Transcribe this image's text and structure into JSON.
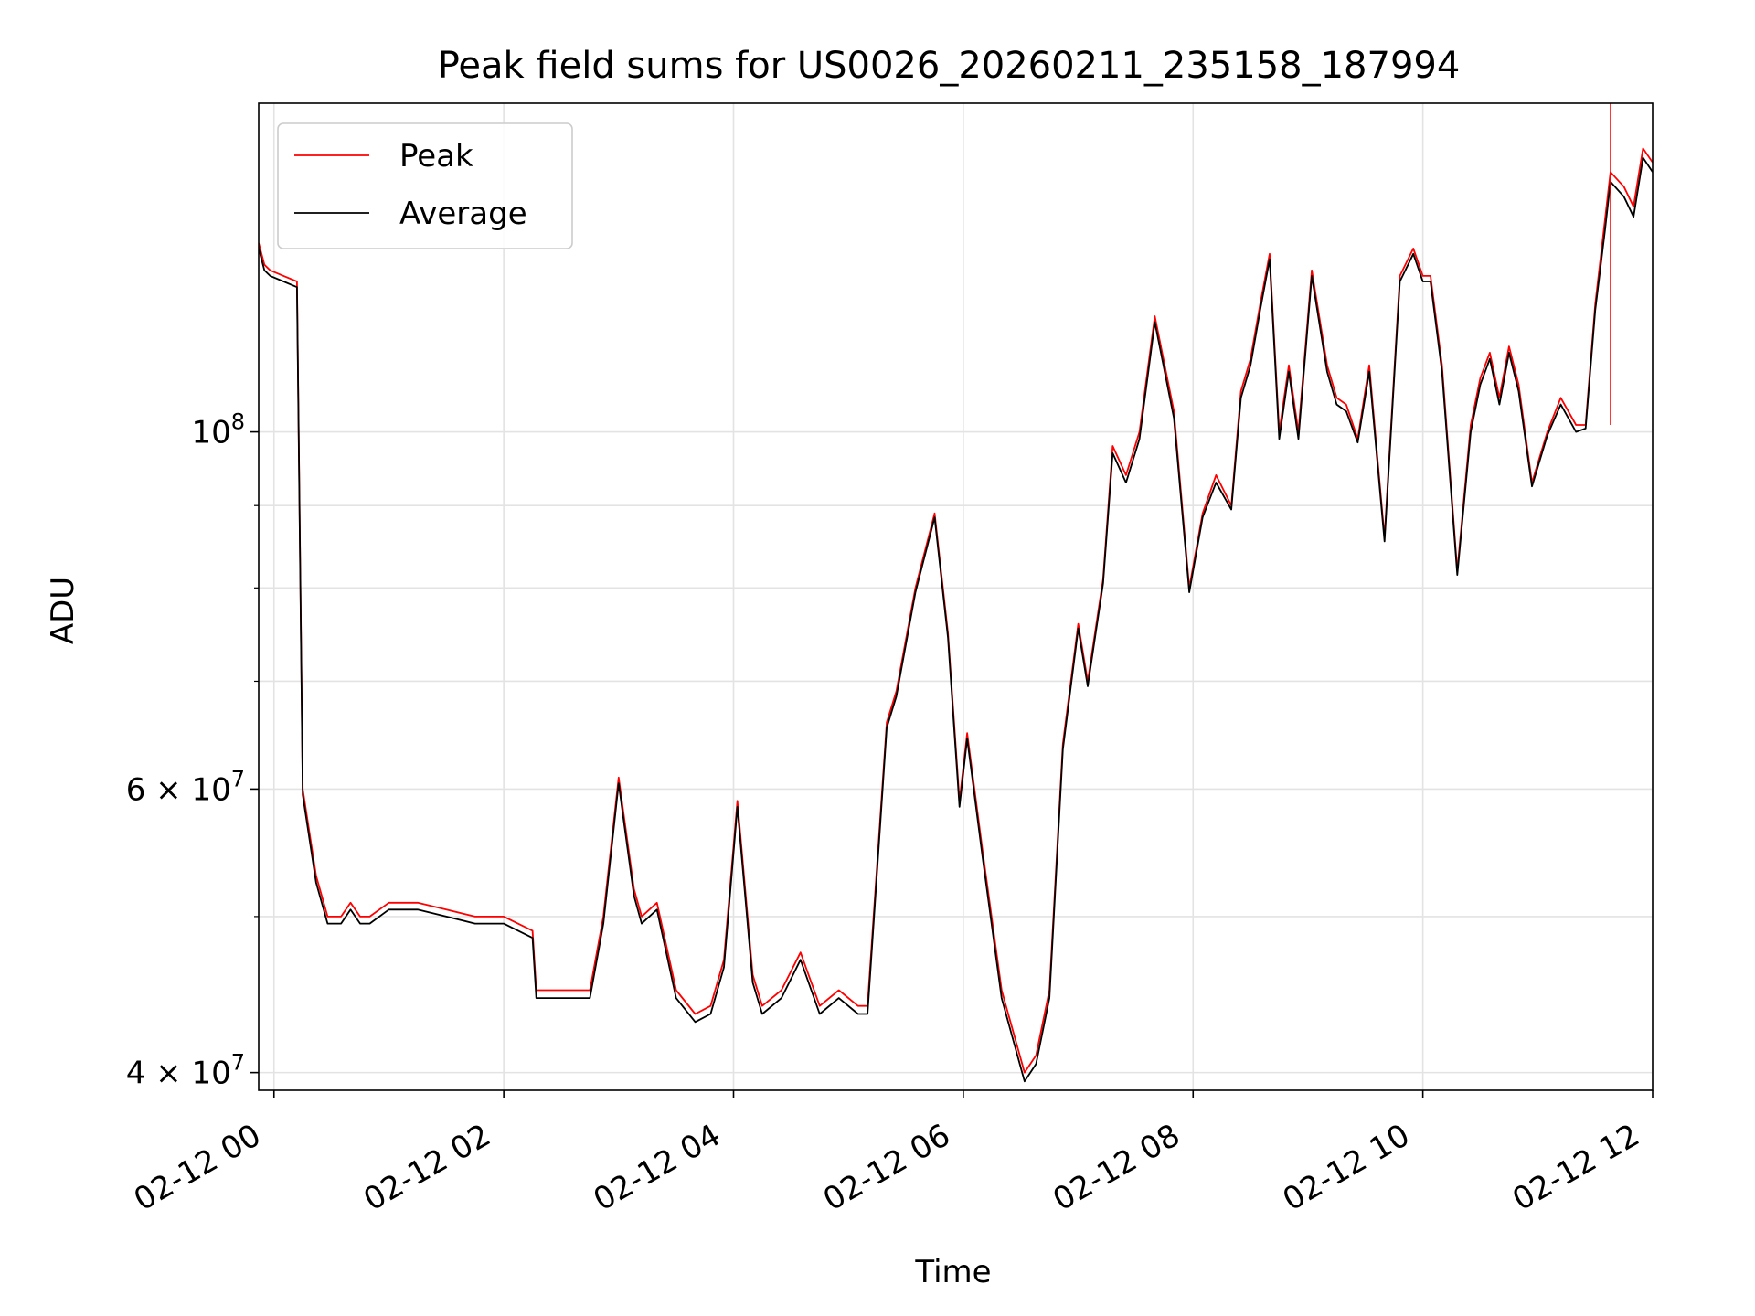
{
  "chart_data": {
    "type": "line",
    "title": "Peak field sums for US0026_20260211_235158_187994",
    "xlabel": "Time",
    "ylabel": "ADU",
    "y_scale": "log",
    "ylim": [
      39000000,
      160000000
    ],
    "xlim": [
      "2026-02-11T23:52",
      "2026-02-12T12:00"
    ],
    "x_ticks": [
      {
        "t": "2026-02-12T00:00",
        "label": "02-12 00"
      },
      {
        "t": "2026-02-12T02:00",
        "label": "02-12 02"
      },
      {
        "t": "2026-02-12T04:00",
        "label": "02-12 04"
      },
      {
        "t": "2026-02-12T06:00",
        "label": "02-12 06"
      },
      {
        "t": "2026-02-12T08:00",
        "label": "02-12 08"
      },
      {
        "t": "2026-02-12T10:00",
        "label": "02-12 10"
      },
      {
        "t": "2026-02-12T12:00",
        "label": "02-12 12"
      }
    ],
    "y_ticks": [
      {
        "value": 40000000,
        "label": "4 × 10⁷",
        "mantissa": "4 × 10",
        "exp": "7"
      },
      {
        "value": 60000000,
        "label": "6 × 10⁷",
        "mantissa": "6 × 10",
        "exp": "7"
      },
      {
        "value": 100000000,
        "label": "10⁸",
        "mantissa": "10",
        "exp": "8"
      }
    ],
    "y_minor_ticks": [
      50000000,
      70000000,
      80000000,
      90000000
    ],
    "grid": true,
    "legend_position": "upper-left",
    "series": [
      {
        "name": "Peak",
        "color": "#ff0000",
        "x": [
          "2026-02-11T23:52",
          "2026-02-11T23:55",
          "2026-02-11T23:58",
          "2026-02-12T00:05",
          "2026-02-12T00:12",
          "2026-02-12T00:15",
          "2026-02-12T00:22",
          "2026-02-12T00:28",
          "2026-02-12T00:35",
          "2026-02-12T00:40",
          "2026-02-12T00:45",
          "2026-02-12T00:50",
          "2026-02-12T01:00",
          "2026-02-12T01:15",
          "2026-02-12T01:30",
          "2026-02-12T01:45",
          "2026-02-12T02:00",
          "2026-02-12T02:15",
          "2026-02-12T02:17",
          "2026-02-12T02:30",
          "2026-02-12T02:45",
          "2026-02-12T02:52",
          "2026-02-12T03:00",
          "2026-02-12T03:08",
          "2026-02-12T03:12",
          "2026-02-12T03:20",
          "2026-02-12T03:30",
          "2026-02-12T03:40",
          "2026-02-12T03:48",
          "2026-02-12T03:55",
          "2026-02-12T04:02",
          "2026-02-12T04:10",
          "2026-02-12T04:15",
          "2026-02-12T04:25",
          "2026-02-12T04:35",
          "2026-02-12T04:45",
          "2026-02-12T04:55",
          "2026-02-12T05:05",
          "2026-02-12T05:10",
          "2026-02-12T05:20",
          "2026-02-12T05:25",
          "2026-02-12T05:35",
          "2026-02-12T05:45",
          "2026-02-12T05:52",
          "2026-02-12T05:58",
          "2026-02-12T06:02",
          "2026-02-12T06:10",
          "2026-02-12T06:20",
          "2026-02-12T06:32",
          "2026-02-12T06:38",
          "2026-02-12T06:45",
          "2026-02-12T06:52",
          "2026-02-12T07:00",
          "2026-02-12T07:05",
          "2026-02-12T07:13",
          "2026-02-12T07:18",
          "2026-02-12T07:25",
          "2026-02-12T07:32",
          "2026-02-12T07:40",
          "2026-02-12T07:50",
          "2026-02-12T07:58",
          "2026-02-12T08:05",
          "2026-02-12T08:12",
          "2026-02-12T08:20",
          "2026-02-12T08:25",
          "2026-02-12T08:30",
          "2026-02-12T08:35",
          "2026-02-12T08:40",
          "2026-02-12T08:45",
          "2026-02-12T08:50",
          "2026-02-12T08:55",
          "2026-02-12T09:02",
          "2026-02-12T09:10",
          "2026-02-12T09:15",
          "2026-02-12T09:20",
          "2026-02-12T09:26",
          "2026-02-12T09:32",
          "2026-02-12T09:40",
          "2026-02-12T09:48",
          "2026-02-12T09:55",
          "2026-02-12T10:00",
          "2026-02-12T10:04",
          "2026-02-12T10:10",
          "2026-02-12T10:18",
          "2026-02-12T10:25",
          "2026-02-12T10:30",
          "2026-02-12T10:35",
          "2026-02-12T10:40",
          "2026-02-12T10:45",
          "2026-02-12T10:50",
          "2026-02-12T10:57",
          "2026-02-12T11:05",
          "2026-02-12T11:12",
          "2026-02-12T11:20",
          "2026-02-12T11:25",
          "2026-02-12T11:30",
          "2026-02-12T11:35",
          "2026-02-12T11:38",
          "2026-02-12T11:45",
          "2026-02-12T11:50",
          "2026-02-12T11:55",
          "2026-02-12T12:00"
        ],
        "y": [
          131000000,
          127000000,
          126000000,
          125000000,
          124000000,
          60000000,
          53000000,
          50000000,
          50000000,
          51000000,
          50000000,
          50000000,
          51000000,
          51000000,
          50500000,
          50000000,
          50000000,
          49000000,
          45000000,
          45000000,
          45000000,
          50000000,
          61000000,
          52000000,
          50000000,
          51000000,
          45000000,
          43500000,
          44000000,
          47000000,
          59000000,
          46000000,
          44000000,
          45000000,
          47500000,
          44000000,
          45000000,
          44000000,
          44000000,
          66000000,
          69000000,
          80000000,
          89000000,
          75000000,
          59000000,
          65000000,
          55000000,
          45000000,
          40000000,
          41000000,
          45000000,
          64000000,
          76000000,
          70000000,
          81000000,
          98000000,
          94000000,
          100000000,
          118000000,
          103000000,
          80000000,
          89000000,
          94000000,
          90000000,
          106000000,
          111000000,
          120000000,
          129000000,
          100000000,
          110000000,
          100000000,
          126000000,
          110000000,
          105000000,
          104000000,
          99000000,
          110000000,
          86000000,
          125000000,
          130000000,
          125000000,
          125000000,
          110000000,
          82000000,
          101000000,
          108000000,
          112000000,
          105000000,
          113000000,
          107000000,
          93000000,
          100000000,
          105000000,
          101000000,
          101000000,
          120000000,
          135000000,
          145000000,
          142000000,
          138000000,
          150000000,
          147000000
        ]
      },
      {
        "name": "Average",
        "color": "#000000",
        "x": [
          "2026-02-11T23:52",
          "2026-02-11T23:55",
          "2026-02-11T23:58",
          "2026-02-12T00:05",
          "2026-02-12T00:12",
          "2026-02-12T00:15",
          "2026-02-12T00:22",
          "2026-02-12T00:28",
          "2026-02-12T00:35",
          "2026-02-12T00:40",
          "2026-02-12T00:45",
          "2026-02-12T00:50",
          "2026-02-12T01:00",
          "2026-02-12T01:15",
          "2026-02-12T01:30",
          "2026-02-12T01:45",
          "2026-02-12T02:00",
          "2026-02-12T02:15",
          "2026-02-12T02:17",
          "2026-02-12T02:30",
          "2026-02-12T02:45",
          "2026-02-12T02:52",
          "2026-02-12T03:00",
          "2026-02-12T03:08",
          "2026-02-12T03:12",
          "2026-02-12T03:20",
          "2026-02-12T03:30",
          "2026-02-12T03:40",
          "2026-02-12T03:48",
          "2026-02-12T03:55",
          "2026-02-12T04:02",
          "2026-02-12T04:10",
          "2026-02-12T04:15",
          "2026-02-12T04:25",
          "2026-02-12T04:35",
          "2026-02-12T04:45",
          "2026-02-12T04:55",
          "2026-02-12T05:05",
          "2026-02-12T05:10",
          "2026-02-12T05:20",
          "2026-02-12T05:25",
          "2026-02-12T05:35",
          "2026-02-12T05:45",
          "2026-02-12T05:52",
          "2026-02-12T05:58",
          "2026-02-12T06:02",
          "2026-02-12T06:10",
          "2026-02-12T06:20",
          "2026-02-12T06:32",
          "2026-02-12T06:38",
          "2026-02-12T06:45",
          "2026-02-12T06:52",
          "2026-02-12T07:00",
          "2026-02-12T07:05",
          "2026-02-12T07:13",
          "2026-02-12T07:18",
          "2026-02-12T07:25",
          "2026-02-12T07:32",
          "2026-02-12T07:40",
          "2026-02-12T07:50",
          "2026-02-12T07:58",
          "2026-02-12T08:05",
          "2026-02-12T08:12",
          "2026-02-12T08:20",
          "2026-02-12T08:25",
          "2026-02-12T08:30",
          "2026-02-12T08:35",
          "2026-02-12T08:40",
          "2026-02-12T08:45",
          "2026-02-12T08:50",
          "2026-02-12T08:55",
          "2026-02-12T09:02",
          "2026-02-12T09:10",
          "2026-02-12T09:15",
          "2026-02-12T09:20",
          "2026-02-12T09:26",
          "2026-02-12T09:32",
          "2026-02-12T09:40",
          "2026-02-12T09:48",
          "2026-02-12T09:55",
          "2026-02-12T10:00",
          "2026-02-12T10:04",
          "2026-02-12T10:10",
          "2026-02-12T10:18",
          "2026-02-12T10:25",
          "2026-02-12T10:30",
          "2026-02-12T10:35",
          "2026-02-12T10:40",
          "2026-02-12T10:45",
          "2026-02-12T10:50",
          "2026-02-12T10:57",
          "2026-02-12T11:05",
          "2026-02-12T11:12",
          "2026-02-12T11:20",
          "2026-02-12T11:25",
          "2026-02-12T11:30",
          "2026-02-12T11:35",
          "2026-02-12T11:38",
          "2026-02-12T11:45",
          "2026-02-12T11:50",
          "2026-02-12T11:55",
          "2026-02-12T12:00"
        ],
        "y": [
          130000000,
          126000000,
          125000000,
          124000000,
          123000000,
          59500000,
          52500000,
          49500000,
          49500000,
          50500000,
          49500000,
          49500000,
          50500000,
          50500000,
          50000000,
          49500000,
          49500000,
          48500000,
          44500000,
          44500000,
          44500000,
          49500000,
          60500000,
          51500000,
          49500000,
          50500000,
          44500000,
          43000000,
          43500000,
          46500000,
          58500000,
          45500000,
          43500000,
          44500000,
          47000000,
          43500000,
          44500000,
          43500000,
          43500000,
          65500000,
          68500000,
          79500000,
          88500000,
          74500000,
          58500000,
          64500000,
          54500000,
          44500000,
          39500000,
          40500000,
          44500000,
          63500000,
          75500000,
          69500000,
          80500000,
          97000000,
          93000000,
          99000000,
          117000000,
          102000000,
          79500000,
          88500000,
          93000000,
          89500000,
          105000000,
          110000000,
          119000000,
          128000000,
          99000000,
          109000000,
          99000000,
          125000000,
          109000000,
          104000000,
          103000000,
          98500000,
          109000000,
          85500000,
          124000000,
          129000000,
          124000000,
          124000000,
          109000000,
          81500000,
          100000000,
          107000000,
          111000000,
          104000000,
          112000000,
          106000000,
          92500000,
          99500000,
          104000000,
          100000000,
          100500000,
          119000000,
          133000000,
          143000000,
          140000000,
          136000000,
          148000000,
          145000000
        ]
      }
    ],
    "spikes": [
      {
        "t": "2026-02-12T11:38",
        "y": [
          101000000,
          160000000
        ],
        "series": "Peak"
      }
    ]
  }
}
